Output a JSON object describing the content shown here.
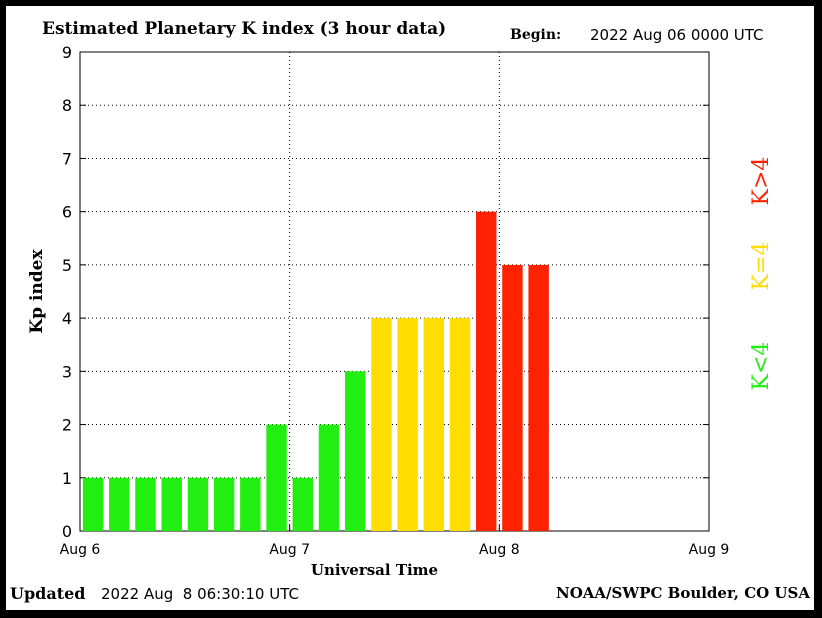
{
  "header": {
    "title": "Estimated Planetary K index (3 hour data)",
    "begin_label": "Begin:",
    "begin_value": "2022 Aug 06 0000 UTC"
  },
  "footer": {
    "updated_label": "Updated",
    "updated_value": "2022 Aug  8 06:30:10 UTC",
    "credit": "NOAA/SWPC Boulder, CO USA"
  },
  "legend": {
    "items": [
      {
        "label": "K<4",
        "color": "#22ee11"
      },
      {
        "label": "K=4",
        "color": "#ffdd00"
      },
      {
        "label": "K>4",
        "color": "#ff2200"
      }
    ]
  },
  "colors": {
    "low": "#22ee11",
    "mid": "#ffdd00",
    "high": "#ff2200"
  },
  "chart_data": {
    "type": "bar",
    "title": "Estimated Planetary K index (3 hour data)",
    "xlabel": "Universal Time",
    "ylabel": "Kp index",
    "ylim": [
      0,
      9
    ],
    "yticks": [
      0,
      1,
      2,
      3,
      4,
      5,
      6,
      7,
      8,
      9
    ],
    "xlim_days": [
      0,
      3
    ],
    "xticks": [
      {
        "day": 0,
        "label": "Aug 6"
      },
      {
        "day": 1,
        "label": "Aug 7"
      },
      {
        "day": 2,
        "label": "Aug 8"
      },
      {
        "day": 3,
        "label": "Aug 9"
      }
    ],
    "interval_hours": 3,
    "values": [
      1,
      1,
      1,
      1,
      1,
      1,
      1,
      2,
      1,
      2,
      3,
      4,
      4,
      4,
      4,
      6,
      5,
      5
    ],
    "grid": true
  }
}
